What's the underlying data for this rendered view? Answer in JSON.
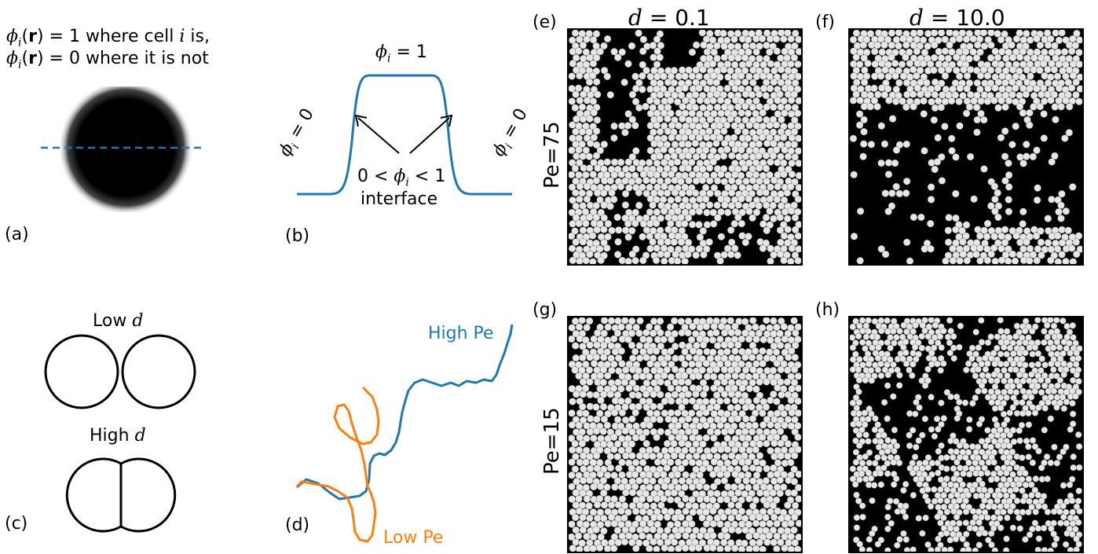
{
  "panel_a": {
    "label": "(a)",
    "line1_rest": " where cell ",
    "line1_end": " is,",
    "line2_rest": " where it is not",
    "phi": "ϕ",
    "sub_i": "i",
    "arg": "(r)",
    "eq1": " = 1",
    "eq0": " = 0"
  },
  "panel_b": {
    "label": "(b)",
    "top": "ϕ_i = 1",
    "left": "ϕ_i = 0",
    "right": "ϕ_i = 0",
    "middle": "0 < ϕ_i < 1",
    "interface": "interface"
  },
  "panel_c": {
    "label": "(c)",
    "low_prefix": "Low ",
    "high_prefix": "High ",
    "d": "d"
  },
  "panel_d": {
    "label": "(d)",
    "high": "High Pe",
    "low": "Low Pe",
    "colors": {
      "high": "#1f77b4",
      "low": "#ff7f0e"
    }
  },
  "grid": {
    "col1_title_prefix": "d",
    "col1_title_value": " = 0.1",
    "col2_title_prefix": "d",
    "col2_title_value": " = 10.0",
    "row1": "Pe=75",
    "row2": "Pe=15",
    "labels": {
      "e": "(e)",
      "f": "(f)",
      "g": "(g)",
      "h": "(h)"
    }
  }
}
